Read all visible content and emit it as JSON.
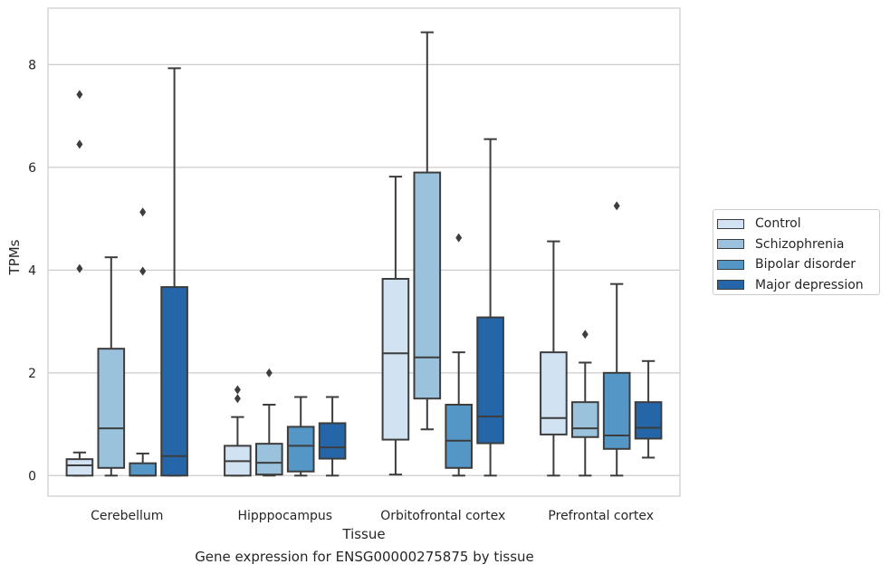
{
  "chart_data": {
    "type": "box",
    "caption": "Gene expression for ENSG00000275875 by tissue",
    "xlabel": "Tissue",
    "ylabel": "TPMs",
    "ylim": [
      -0.4,
      9.1
    ],
    "yticks": [
      "0",
      "2",
      "4",
      "6",
      "8"
    ],
    "grid": "horizontal",
    "legend_position": "right",
    "categories": [
      "Cerebellum",
      "Hipppocampus",
      "Orbitofrontal cortex",
      "Prefrontal cortex"
    ],
    "series": [
      {
        "name": "Control",
        "color": "#d1e2f2",
        "boxes": [
          {
            "whisker_low": 0.0,
            "q1": 0.0,
            "median": 0.2,
            "q3": 0.32,
            "whisker_high": 0.45,
            "outliers": [
              4.03,
              6.45,
              7.42
            ]
          },
          {
            "whisker_low": 0.0,
            "q1": 0.0,
            "median": 0.28,
            "q3": 0.58,
            "whisker_high": 1.14,
            "outliers": [
              1.5,
              1.67
            ]
          },
          {
            "whisker_low": 0.02,
            "q1": 0.7,
            "median": 2.38,
            "q3": 3.83,
            "whisker_high": 5.82,
            "outliers": []
          },
          {
            "whisker_low": 0.0,
            "q1": 0.8,
            "median": 1.12,
            "q3": 2.4,
            "whisker_high": 4.56,
            "outliers": []
          }
        ]
      },
      {
        "name": "Schizophrenia",
        "color": "#9ac2dc",
        "boxes": [
          {
            "whisker_low": 0.0,
            "q1": 0.15,
            "median": 0.92,
            "q3": 2.47,
            "whisker_high": 4.25,
            "outliers": []
          },
          {
            "whisker_low": 0.0,
            "q1": 0.02,
            "median": 0.25,
            "q3": 0.62,
            "whisker_high": 1.38,
            "outliers": [
              2.0
            ]
          },
          {
            "whisker_low": 0.9,
            "q1": 1.5,
            "median": 2.3,
            "q3": 5.9,
            "whisker_high": 8.63,
            "outliers": []
          },
          {
            "whisker_low": 0.0,
            "q1": 0.75,
            "median": 0.92,
            "q3": 1.43,
            "whisker_high": 2.2,
            "outliers": [
              2.75
            ]
          }
        ]
      },
      {
        "name": "Bipolar disorder",
        "color": "#5497c6",
        "boxes": [
          {
            "whisker_low": 0.0,
            "q1": 0.0,
            "median": 0.0,
            "q3": 0.24,
            "whisker_high": 0.43,
            "outliers": [
              3.98,
              5.13
            ]
          },
          {
            "whisker_low": 0.0,
            "q1": 0.08,
            "median": 0.58,
            "q3": 0.95,
            "whisker_high": 1.53,
            "outliers": []
          },
          {
            "whisker_low": 0.0,
            "q1": 0.15,
            "median": 0.68,
            "q3": 1.38,
            "whisker_high": 2.4,
            "outliers": [
              4.63
            ]
          },
          {
            "whisker_low": 0.0,
            "q1": 0.52,
            "median": 0.78,
            "q3": 2.0,
            "whisker_high": 3.73,
            "outliers": [
              5.25
            ]
          }
        ]
      },
      {
        "name": "Major depression",
        "color": "#2466a8",
        "boxes": [
          {
            "whisker_low": 0.0,
            "q1": 0.0,
            "median": 0.38,
            "q3": 3.67,
            "whisker_high": 7.93,
            "outliers": []
          },
          {
            "whisker_low": 0.0,
            "q1": 0.33,
            "median": 0.55,
            "q3": 1.02,
            "whisker_high": 1.53,
            "outliers": []
          },
          {
            "whisker_low": 0.0,
            "q1": 0.63,
            "median": 1.15,
            "q3": 3.08,
            "whisker_high": 6.55,
            "outliers": []
          },
          {
            "whisker_low": 0.35,
            "q1": 0.72,
            "median": 0.93,
            "q3": 1.43,
            "whisker_high": 2.23,
            "outliers": []
          }
        ]
      }
    ]
  }
}
